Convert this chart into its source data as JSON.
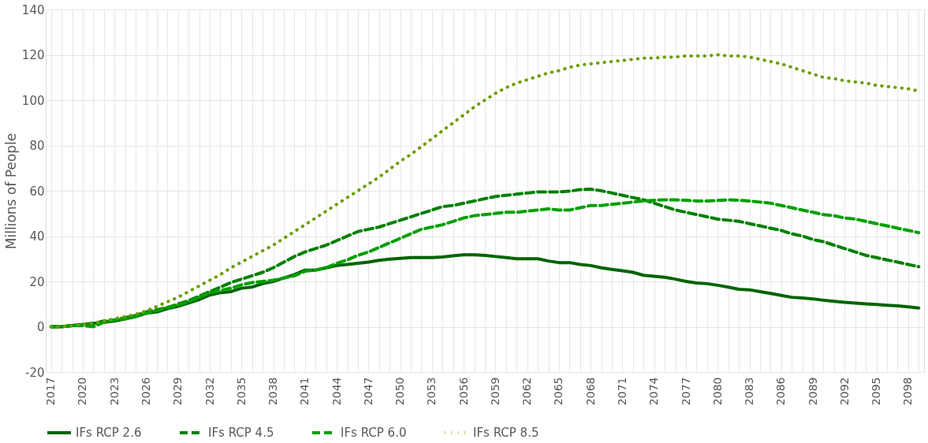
{
  "chart_data": {
    "type": "line",
    "ylabel": "Millions of People",
    "x": [
      2017,
      2018,
      2019,
      2020,
      2021,
      2022,
      2023,
      2024,
      2025,
      2026,
      2027,
      2028,
      2029,
      2030,
      2031,
      2032,
      2033,
      2034,
      2035,
      2036,
      2037,
      2038,
      2039,
      2040,
      2041,
      2042,
      2043,
      2044,
      2045,
      2046,
      2047,
      2048,
      2049,
      2050,
      2051,
      2052,
      2053,
      2054,
      2055,
      2056,
      2057,
      2058,
      2059,
      2060,
      2061,
      2062,
      2063,
      2064,
      2065,
      2066,
      2067,
      2068,
      2069,
      2070,
      2071,
      2072,
      2073,
      2074,
      2075,
      2076,
      2077,
      2078,
      2079,
      2080,
      2081,
      2082,
      2083,
      2084,
      2085,
      2086,
      2087,
      2088,
      2089,
      2090,
      2091,
      2092,
      2093,
      2094,
      2095,
      2096,
      2097,
      2098,
      2099
    ],
    "xlim": [
      2016.5,
      2099.5
    ],
    "xticks": [
      2017,
      {
        "value": 2018,
        "label": null
      },
      {
        "value": 2019,
        "label": null
      },
      2020,
      {
        "value": 2021,
        "label": null
      },
      {
        "value": 2022,
        "label": null
      },
      2023,
      {
        "value": 2024,
        "label": null
      },
      {
        "value": 2025,
        "label": null
      },
      2026,
      {
        "value": 2027,
        "label": null
      },
      {
        "value": 2028,
        "label": null
      },
      2029,
      {
        "value": 2030,
        "label": null
      },
      {
        "value": 2031,
        "label": null
      },
      2032,
      {
        "value": 2033,
        "label": null
      },
      {
        "value": 2034,
        "label": null
      },
      2035,
      {
        "value": 2036,
        "label": null
      },
      {
        "value": 2037,
        "label": null
      },
      2038,
      {
        "value": 2039,
        "label": null
      },
      {
        "value": 2040,
        "label": null
      },
      2041,
      {
        "value": 2042,
        "label": null
      },
      {
        "value": 2043,
        "label": null
      },
      2044,
      {
        "value": 2045,
        "label": null
      },
      {
        "value": 2046,
        "label": null
      },
      2047,
      {
        "value": 2048,
        "label": null
      },
      {
        "value": 2049,
        "label": null
      },
      2050,
      {
        "value": 2051,
        "label": null
      },
      {
        "value": 2052,
        "label": null
      },
      2053,
      {
        "value": 2054,
        "label": null
      },
      {
        "value": 2055,
        "label": null
      },
      2056,
      {
        "value": 2057,
        "label": null
      },
      {
        "value": 2058,
        "label": null
      },
      2059,
      {
        "value": 2060,
        "label": null
      },
      {
        "value": 2061,
        "label": null
      },
      2062,
      {
        "value": 2063,
        "label": null
      },
      {
        "value": 2064,
        "label": null
      },
      2065,
      {
        "value": 2066,
        "label": null
      },
      {
        "value": 2067,
        "label": null
      },
      2068,
      {
        "value": 2069,
        "label": null
      },
      {
        "value": 2070,
        "label": null
      },
      2071,
      {
        "value": 2072,
        "label": null
      },
      {
        "value": 2073,
        "label": null
      },
      2074,
      {
        "value": 2075,
        "label": null
      },
      {
        "value": 2076,
        "label": null
      },
      2077,
      {
        "value": 2078,
        "label": null
      },
      {
        "value": 2079,
        "label": null
      },
      2080,
      {
        "value": 2081,
        "label": null
      },
      {
        "value": 2082,
        "label": null
      },
      2083,
      {
        "value": 2084,
        "label": null
      },
      {
        "value": 2085,
        "label": null
      },
      2086,
      {
        "value": 2087,
        "label": null
      },
      {
        "value": 2088,
        "label": null
      },
      2089,
      {
        "value": 2090,
        "label": null
      },
      {
        "value": 2091,
        "label": null
      },
      2092,
      {
        "value": 2093,
        "label": null
      },
      {
        "value": 2094,
        "label": null
      },
      2095,
      {
        "value": 2096,
        "label": null
      },
      {
        "value": 2097,
        "label": null
      },
      2098,
      {
        "value": 2099,
        "label": null
      }
    ],
    "ylim": [
      -20,
      140
    ],
    "yticks": [
      -20,
      0,
      20,
      40,
      60,
      80,
      100,
      120,
      140
    ],
    "grid": true,
    "legend": "bottom",
    "series": [
      {
        "name": "IFs RCP 2.6",
        "color": "#006400",
        "line_style": "solid",
        "values": [
          0,
          0,
          0.5,
          1,
          1.5,
          2,
          2.5,
          3.5,
          4.5,
          6,
          6.5,
          8,
          9,
          10.5,
          12,
          14,
          15,
          15.5,
          17,
          17.5,
          19,
          20,
          21.5,
          23,
          25,
          25,
          26,
          27,
          27.5,
          28,
          28.5,
          29.3,
          29.8,
          30.2,
          30.5,
          30.5,
          30.5,
          30.8,
          31.3,
          31.7,
          31.7,
          31.5,
          31,
          30.5,
          30,
          30,
          30,
          29,
          28.3,
          28.3,
          27.5,
          27,
          26,
          25.3,
          24.7,
          24,
          22.7,
          22.3,
          21.8,
          21,
          20,
          19.3,
          19,
          18.3,
          17.5,
          16.5,
          16.3,
          15.5,
          14.7,
          13.8,
          13,
          12.7,
          12.3,
          11.7,
          11.2,
          10.8,
          10.4,
          10.1,
          9.8,
          9.5,
          9.2,
          8.8,
          8.3
        ]
      },
      {
        "name": "IFs RCP 4.5",
        "color": "#008000",
        "line_style": "dashed",
        "values": [
          0,
          0,
          0.5,
          1,
          1.5,
          2.5,
          3,
          4,
          5,
          6.5,
          7.5,
          8.5,
          10,
          11.5,
          13.5,
          15.5,
          17.5,
          19.5,
          21,
          22.5,
          24,
          26,
          28.5,
          31,
          33,
          34.5,
          36,
          38,
          40,
          42,
          43,
          44,
          45.5,
          47,
          48.5,
          50,
          51.5,
          53,
          53.5,
          54.5,
          55.5,
          56.5,
          57.5,
          58,
          58.5,
          59,
          59.5,
          59.5,
          59.5,
          59.8,
          60.5,
          60.7,
          60,
          59,
          58,
          57,
          56,
          54.5,
          53,
          51.5,
          50.5,
          49.5,
          48.5,
          47.5,
          47,
          46.5,
          45.5,
          44.5,
          43.5,
          42.5,
          41,
          40,
          38.5,
          37.5,
          36,
          34.5,
          33,
          31.5,
          30.5,
          29.5,
          28.5,
          27.5,
          26.5
        ]
      },
      {
        "name": "IFs RCP 6.0",
        "color": "#00a000",
        "line_style": "dashed",
        "values": [
          0,
          0,
          0.5,
          0.5,
          0,
          2,
          3,
          3.5,
          4.5,
          6,
          7,
          8.5,
          9.5,
          11,
          13,
          15,
          16,
          17,
          18.5,
          19.5,
          20,
          20.5,
          21.5,
          22.5,
          24.5,
          25,
          26,
          28,
          29.5,
          31.5,
          33,
          35,
          37,
          39,
          41,
          43,
          44,
          45,
          46.5,
          48,
          49,
          49.5,
          50,
          50.5,
          50.5,
          51,
          51.5,
          52,
          51.5,
          51.5,
          52.5,
          53.5,
          53.5,
          54,
          54.5,
          55,
          55.5,
          55.8,
          56,
          56,
          55.8,
          55.5,
          55.5,
          55.7,
          56,
          55.8,
          55.5,
          55,
          54.5,
          53.5,
          52.5,
          51.5,
          50.5,
          49.5,
          49,
          48,
          47.5,
          46.5,
          45.5,
          44.5,
          43.5,
          42.5,
          41.5
        ]
      },
      {
        "name": "IFs RCP 8.5",
        "color": "#6b9e00",
        "line_style": "dotted",
        "values": [
          0,
          0,
          0.5,
          1,
          1.5,
          2.5,
          3.5,
          4.5,
          5.5,
          7,
          9,
          11,
          13,
          15.5,
          18,
          20.5,
          23,
          26,
          28.5,
          31,
          33.5,
          36,
          39,
          42,
          45,
          48,
          51,
          54,
          57,
          60,
          63,
          66,
          69.5,
          73,
          76,
          79.5,
          83,
          86.5,
          90,
          93.5,
          97,
          100,
          103,
          105.5,
          107.5,
          109,
          110.5,
          112,
          113,
          114.5,
          115.5,
          116,
          116.5,
          117,
          117.5,
          118,
          118.5,
          118.5,
          119,
          119,
          119.5,
          119.5,
          119.5,
          120,
          119.5,
          119.5,
          119,
          118,
          117,
          116,
          114.5,
          113,
          111.5,
          110,
          109.5,
          108.5,
          108,
          107.5,
          106.5,
          106,
          105.5,
          105,
          104
        ]
      }
    ]
  }
}
